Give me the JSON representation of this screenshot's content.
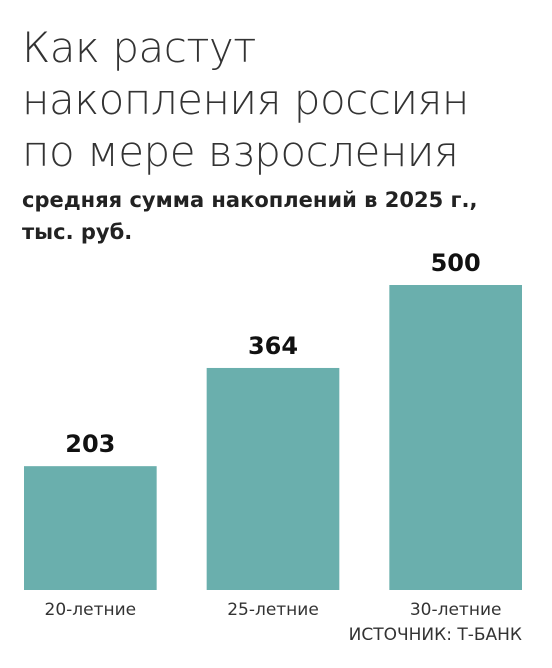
{
  "chart_data": {
    "type": "bar",
    "title": "Как растут накопления россиян по мере взросления",
    "subtitle": "средняя сумма накоплений в 2025 г., тыс. руб.",
    "categories": [
      "20-летние",
      "25-летние",
      "30-летние"
    ],
    "values": [
      203,
      364,
      500
    ],
    "color": "#6aafad",
    "source": "ИСТОЧНИК: Т-БАНК"
  }
}
